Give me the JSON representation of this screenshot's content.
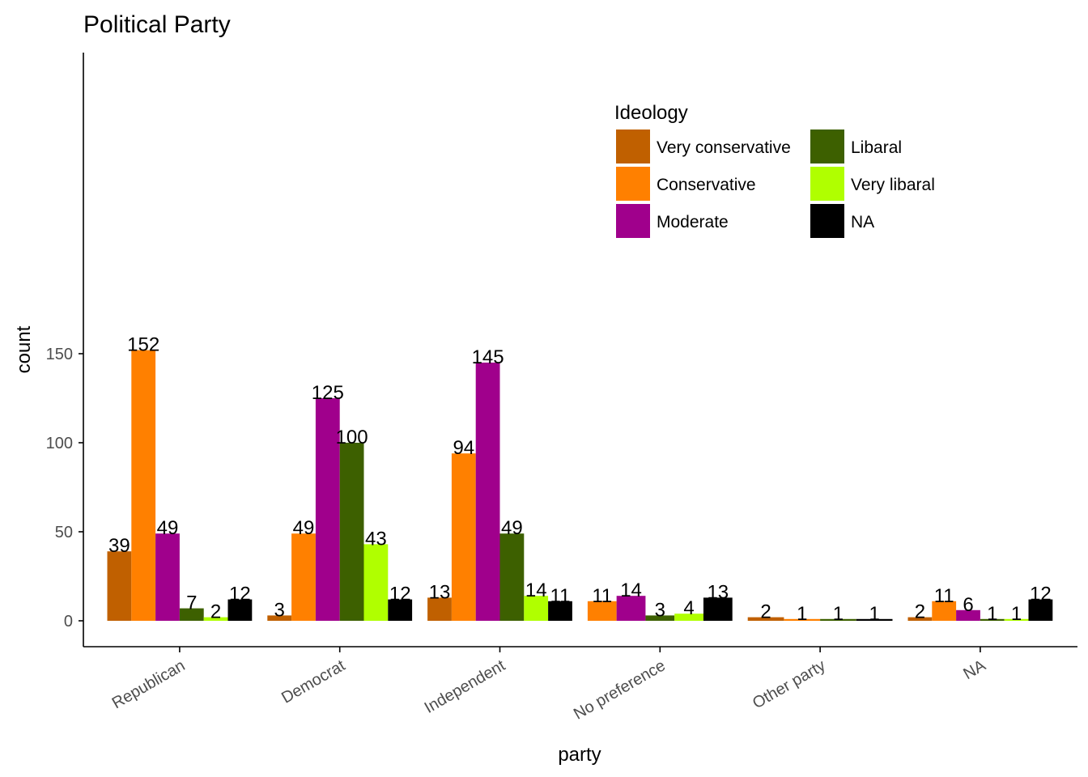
{
  "chart_data": {
    "type": "bar",
    "title": "Political Party",
    "xlabel": "party",
    "ylabel": "count",
    "ylim": [
      0,
      160
    ],
    "yticks": [
      0,
      50,
      100,
      150
    ],
    "grid": false,
    "legend": {
      "title": "Ideology",
      "position": "top-right",
      "columns": 2
    },
    "categories": [
      "Republican",
      "Democrat",
      "Independent",
      "No preference",
      "Other party",
      "NA"
    ],
    "series": [
      {
        "name": "Very conservative",
        "color": "#C06000",
        "values": [
          39,
          3,
          13,
          null,
          2,
          2
        ]
      },
      {
        "name": "Conservative",
        "color": "#FF8000",
        "values": [
          152,
          49,
          94,
          11,
          1,
          11
        ]
      },
      {
        "name": "Moderate",
        "color": "#A0008C",
        "values": [
          49,
          125,
          145,
          14,
          null,
          6
        ]
      },
      {
        "name": "Libaral",
        "color": "#3D6000",
        "values": [
          7,
          100,
          49,
          3,
          1,
          1
        ]
      },
      {
        "name": "Very libaral",
        "color": "#B0FF00",
        "values": [
          2,
          43,
          14,
          4,
          null,
          1
        ]
      },
      {
        "name": "NA",
        "color": "#000000",
        "values": [
          12,
          12,
          11,
          13,
          1,
          12
        ]
      }
    ]
  }
}
